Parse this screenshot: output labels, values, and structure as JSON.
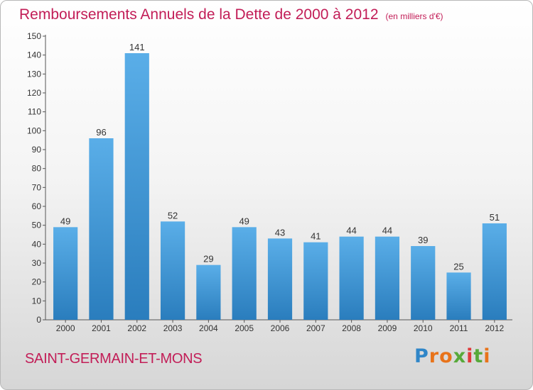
{
  "title": "Remboursements Annuels de la Dette de 2000 à 2012",
  "subtitle": "(en milliers d'€)",
  "commune": "SAINT-GERMAIN-ET-MONS",
  "logo": "Proxiti",
  "colors": {
    "title": "#c21d57",
    "bar_light": "#5aaee8",
    "bar_dark": "#2a7dbd"
  },
  "chart_data": {
    "type": "bar",
    "categories": [
      "2000",
      "2001",
      "2002",
      "2003",
      "2004",
      "2005",
      "2006",
      "2007",
      "2008",
      "2009",
      "2010",
      "2011",
      "2012"
    ],
    "values": [
      49,
      96,
      141,
      52,
      29,
      49,
      43,
      41,
      44,
      44,
      39,
      25,
      51
    ],
    "ylim": [
      0,
      150
    ],
    "ytick_step": 10,
    "grid": false,
    "data_labels": true
  }
}
